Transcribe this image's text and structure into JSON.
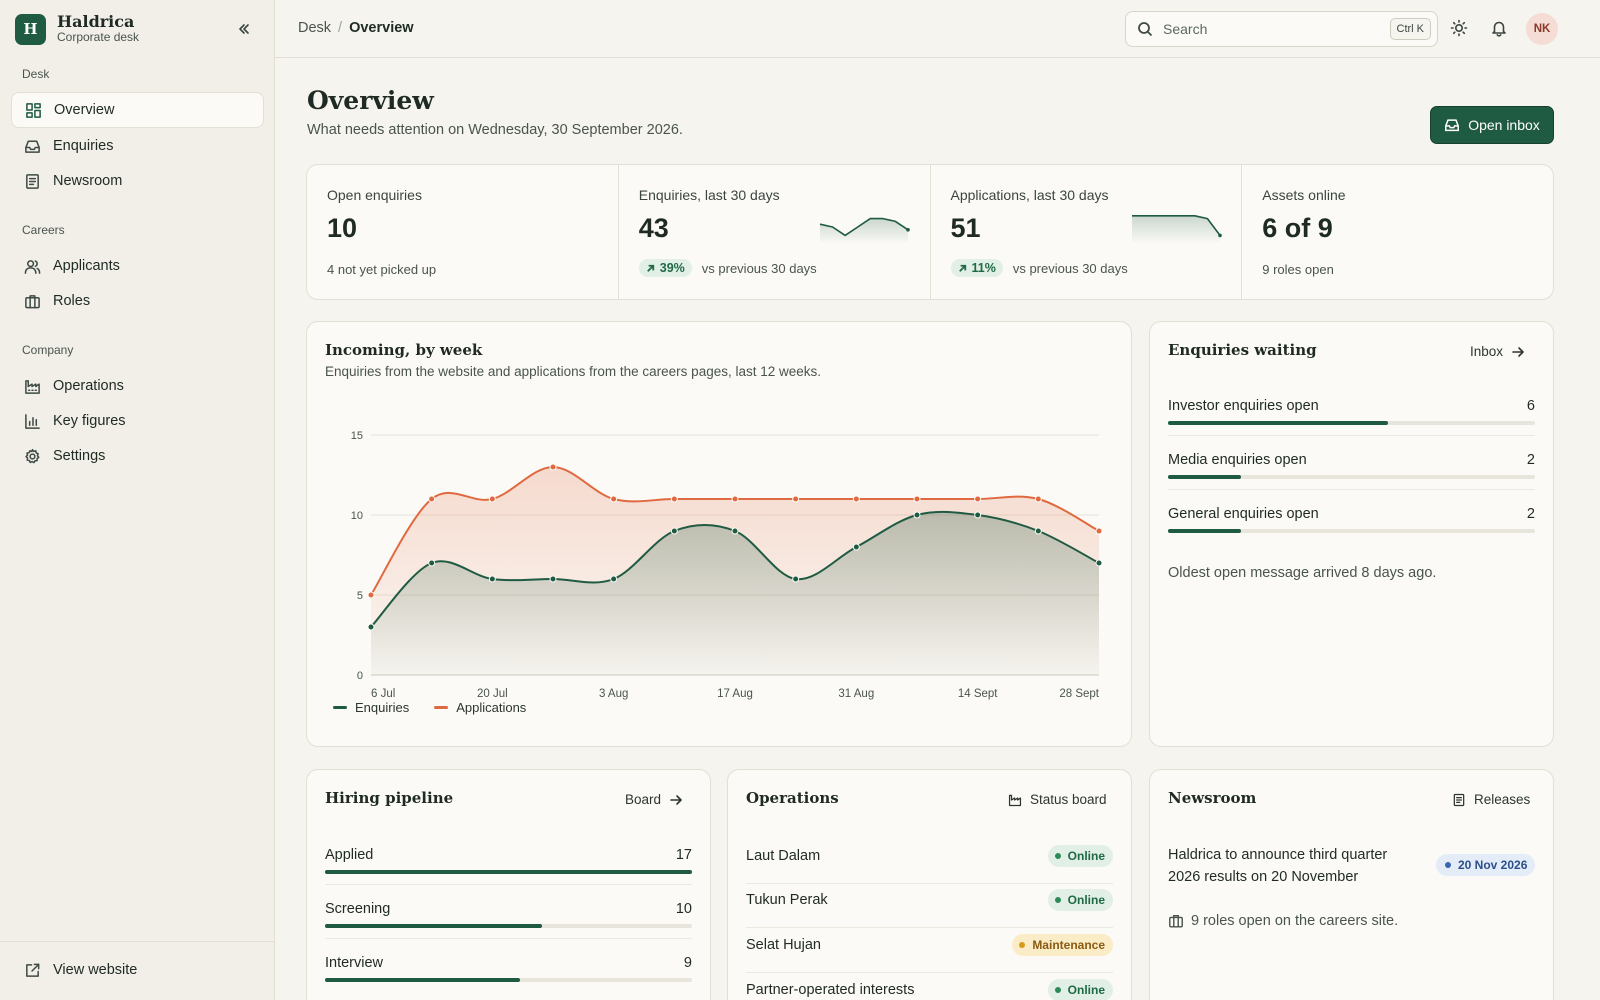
{
  "brand": {
    "initial": "H",
    "name": "Haldrica",
    "subtitle": "Corporate desk"
  },
  "sidebar": {
    "sections": [
      {
        "label": "Desk",
        "items": [
          {
            "label": "Overview",
            "icon": "grid-icon",
            "active": true
          },
          {
            "label": "Enquiries",
            "icon": "inbox-icon"
          },
          {
            "label": "Newsroom",
            "icon": "newspaper-icon"
          }
        ]
      },
      {
        "label": "Careers",
        "items": [
          {
            "label": "Applicants",
            "icon": "users-icon"
          },
          {
            "label": "Roles",
            "icon": "briefcase-icon"
          }
        ]
      },
      {
        "label": "Company",
        "items": [
          {
            "label": "Operations",
            "icon": "factory-icon"
          },
          {
            "label": "Key figures",
            "icon": "bar-chart-icon"
          },
          {
            "label": "Settings",
            "icon": "gear-icon"
          }
        ]
      }
    ],
    "footer_link": "View website"
  },
  "topbar": {
    "breadcrumb": [
      "Desk",
      "Overview"
    ],
    "search_placeholder": "Search",
    "search_shortcut": "Ctrl K",
    "avatar_initials": "NK"
  },
  "header": {
    "title": "Overview",
    "subtitle": "What needs attention on Wednesday, 30 September 2026.",
    "primary_action": "Open inbox"
  },
  "stats": [
    {
      "label": "Open enquiries",
      "value": "10",
      "note": "4 not yet picked up"
    },
    {
      "label": "Enquiries, last 30 days",
      "value": "43",
      "change": "39%",
      "change_note": "vs previous 30 days",
      "spark": [
        6,
        5,
        2,
        5,
        8,
        8,
        7,
        4
      ]
    },
    {
      "label": "Applications, last 30 days",
      "value": "51",
      "change": "11%",
      "change_note": "vs previous 30 days",
      "spark": [
        9,
        9,
        9,
        9,
        9,
        9,
        8,
        2
      ]
    },
    {
      "label": "Assets online",
      "value": "6 of 9",
      "note": "9 roles open"
    }
  ],
  "incoming": {
    "title": "Incoming, by week",
    "subtitle": "Enquiries from the website and applications from the careers pages, last 12 weeks.",
    "chart_data": {
      "type": "area",
      "x_tick_labels": [
        "6 Jul",
        "20 Jul",
        "3 Aug",
        "17 Aug",
        "31 Aug",
        "14 Sept",
        "28 Sept"
      ],
      "ylim": [
        0,
        15
      ],
      "y_ticks": [
        0,
        5,
        10,
        15
      ],
      "series": [
        {
          "name": "Enquiries",
          "color": "#1f5a42",
          "values": [
            3,
            7,
            6,
            6,
            6,
            9,
            9,
            6,
            8,
            10,
            10,
            9,
            7
          ]
        },
        {
          "name": "Applications",
          "color": "#e0693f",
          "values": [
            5,
            11,
            11,
            13,
            11,
            11,
            11,
            11,
            11,
            11,
            11,
            11,
            9
          ]
        }
      ],
      "grid": true,
      "legend": "bottom-left"
    }
  },
  "waiting": {
    "title": "Enquiries waiting",
    "link": "Inbox",
    "rows": [
      {
        "label": "Investor enquiries open",
        "count": "6",
        "fraction": 0.6
      },
      {
        "label": "Media enquiries open",
        "count": "2",
        "fraction": 0.2
      },
      {
        "label": "General enquiries open",
        "count": "2",
        "fraction": 0.2
      }
    ],
    "note": "Oldest open message arrived 8 days ago."
  },
  "pipeline": {
    "title": "Hiring pipeline",
    "link": "Board",
    "rows": [
      {
        "label": "Applied",
        "count": "17",
        "fraction": 1.0
      },
      {
        "label": "Screening",
        "count": "10",
        "fraction": 0.59
      },
      {
        "label": "Interview",
        "count": "9",
        "fraction": 0.53
      }
    ]
  },
  "operations": {
    "title": "Operations",
    "link": "Status board",
    "rows": [
      {
        "name": "Laut Dalam",
        "status": "Online",
        "kind": "online"
      },
      {
        "name": "Tukun Perak",
        "status": "Online",
        "kind": "online"
      },
      {
        "name": "Selat Hujan",
        "status": "Maintenance",
        "kind": "maint"
      },
      {
        "name": "Partner-operated interests",
        "status": "Online",
        "kind": "online"
      }
    ]
  },
  "newsroom": {
    "title": "Newsroom",
    "link": "Releases",
    "headline": "Haldrica to announce third quarter 2026 results on 20 November",
    "date": "20 Nov 2026",
    "note": "9 roles open on the careers site."
  }
}
